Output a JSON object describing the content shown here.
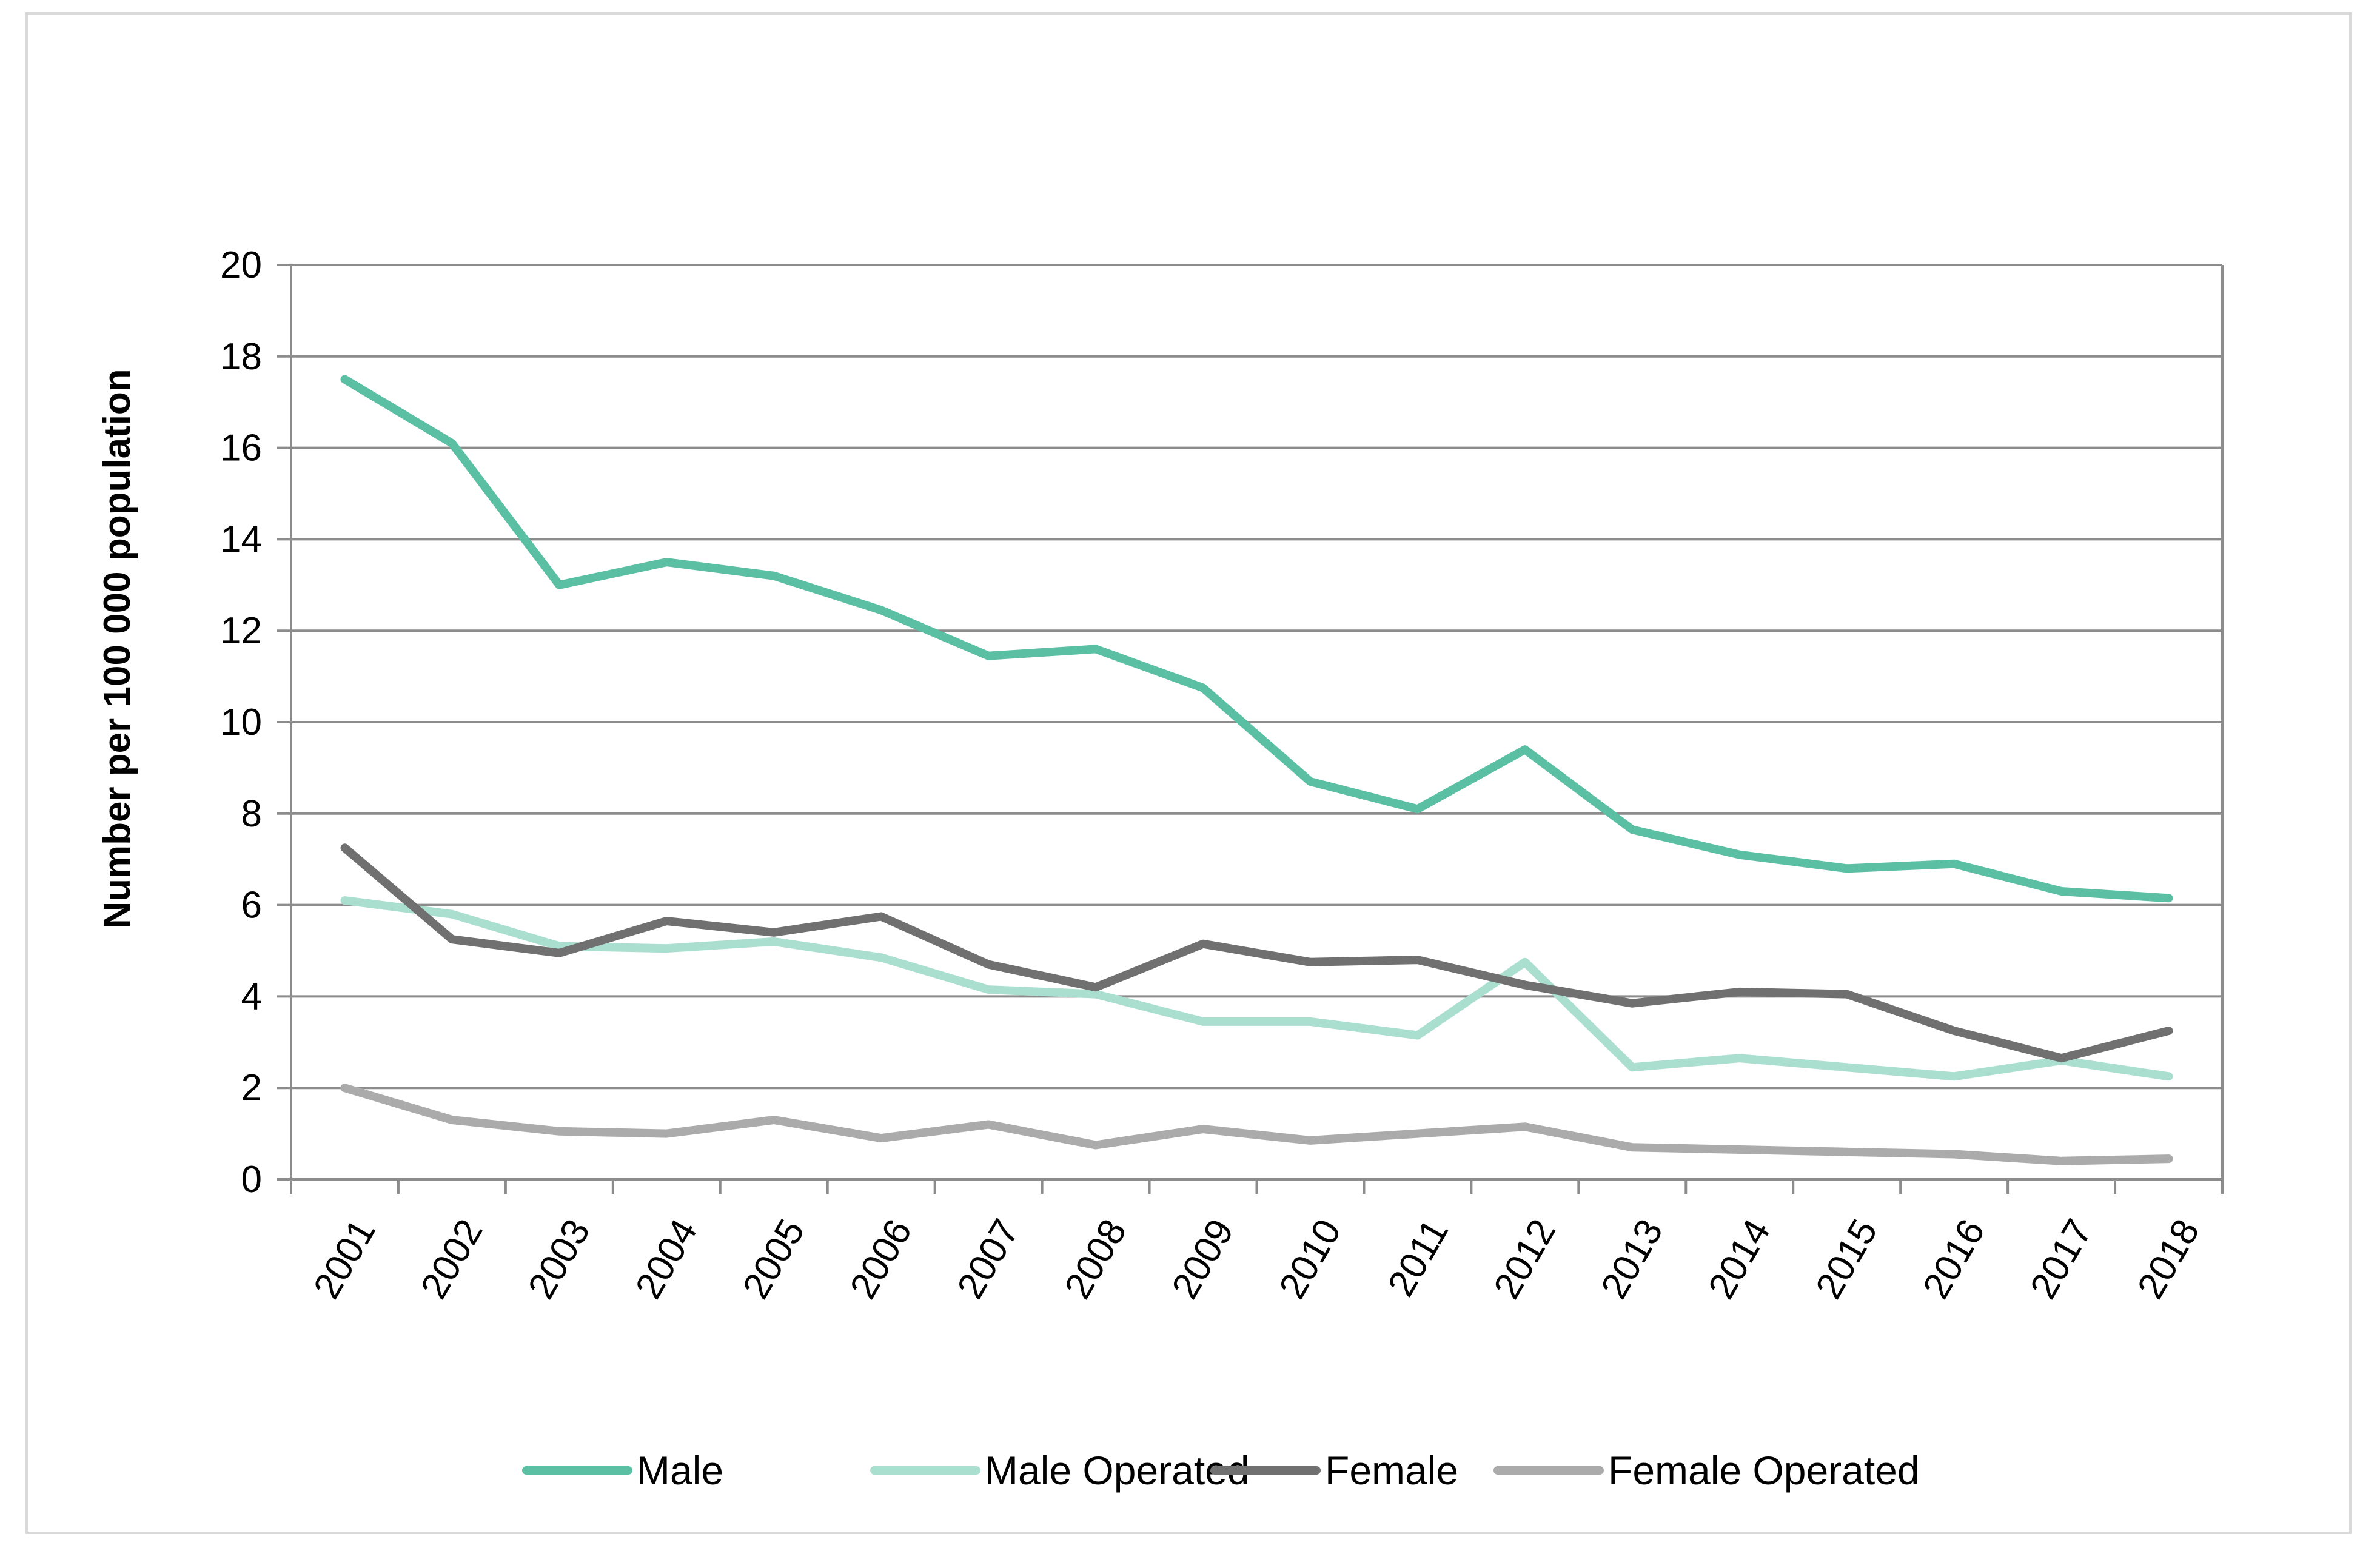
{
  "chart_data": {
    "type": "line",
    "title": "",
    "xlabel": "",
    "ylabel": "Number per 100 000 population",
    "ylim": [
      0,
      20
    ],
    "yticks": [
      "0",
      "2",
      "4",
      "6",
      "8",
      "10",
      "12",
      "14",
      "16",
      "18",
      "20"
    ],
    "ytick_values": [
      0,
      2,
      4,
      6,
      8,
      10,
      12,
      14,
      16,
      18,
      20
    ],
    "categories": [
      "2001",
      "2002",
      "2003",
      "2004",
      "2005",
      "2006",
      "2007",
      "2008",
      "2009",
      "2010",
      "2011",
      "2012",
      "2013",
      "2014",
      "2015",
      "2016",
      "2017",
      "2018"
    ],
    "grid": true,
    "legend_position": "bottom",
    "series": [
      {
        "name": "Male",
        "color": "#5bbfa3",
        "values": [
          17.5,
          16.1,
          13.0,
          13.5,
          13.2,
          12.45,
          11.45,
          11.6,
          10.75,
          8.7,
          8.1,
          9.4,
          7.65,
          7.1,
          6.8,
          6.9,
          6.3,
          6.15
        ]
      },
      {
        "name": "Male Operated",
        "color": "#aadfd0",
        "values": [
          6.1,
          5.8,
          5.1,
          5.05,
          5.2,
          4.85,
          4.15,
          4.05,
          3.45,
          3.45,
          3.15,
          4.75,
          2.45,
          2.65,
          2.45,
          2.25,
          2.6,
          2.25
        ]
      },
      {
        "name": "Female",
        "color": "#717071",
        "values": [
          7.25,
          5.25,
          4.95,
          5.65,
          5.4,
          5.75,
          4.7,
          4.2,
          5.15,
          4.75,
          4.8,
          4.25,
          3.85,
          4.1,
          4.05,
          3.25,
          2.65,
          3.25
        ]
      },
      {
        "name": "Female Operated",
        "color": "#ababab",
        "values": [
          2.0,
          1.3,
          1.05,
          1.0,
          1.3,
          0.9,
          1.2,
          0.75,
          1.1,
          0.85,
          1.0,
          1.15,
          0.7,
          0.65,
          0.6,
          0.55,
          0.4,
          0.45
        ]
      }
    ]
  }
}
